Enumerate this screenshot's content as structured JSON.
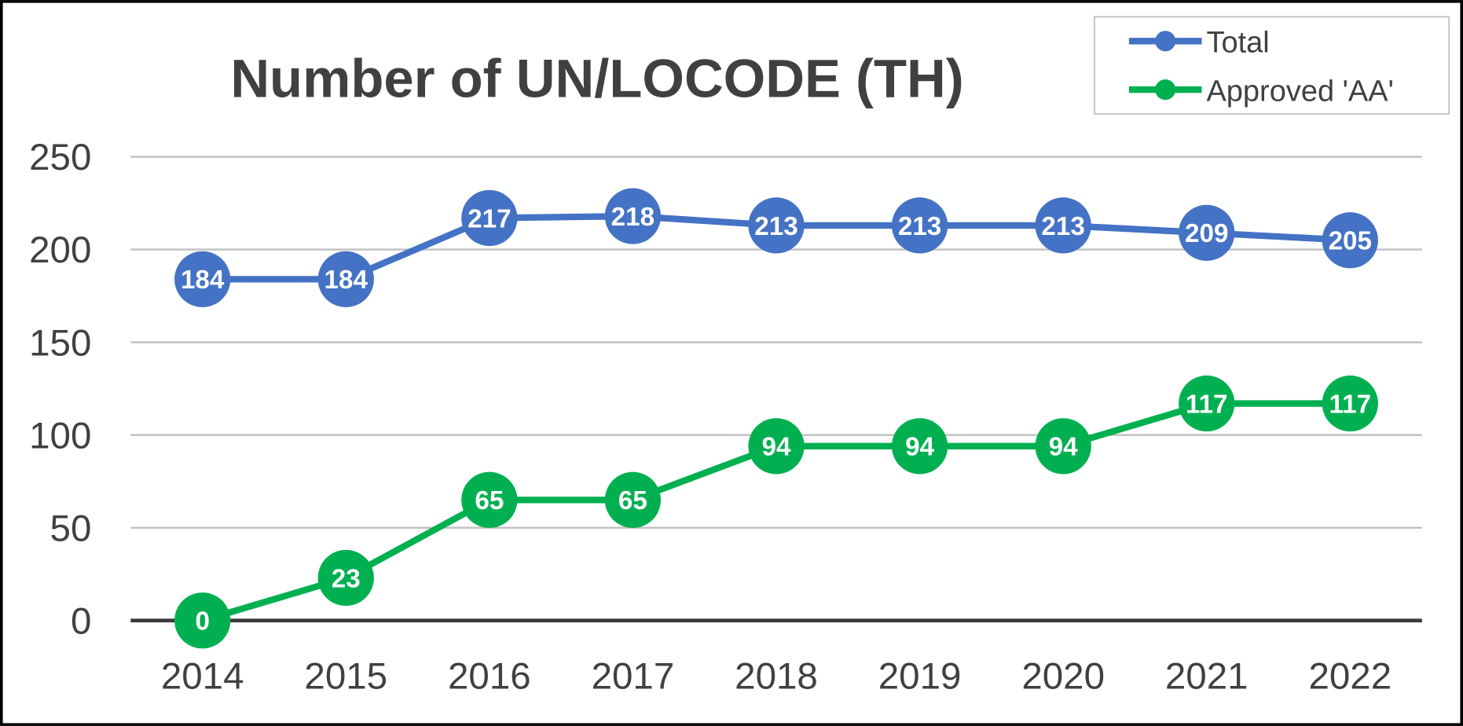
{
  "chart_data": {
    "type": "line",
    "title": "Number of UN/LOCODE (TH)",
    "xlabel": "",
    "ylabel": "",
    "categories": [
      "2014",
      "2015",
      "2016",
      "2017",
      "2018",
      "2019",
      "2020",
      "2021",
      "2022"
    ],
    "yticks": [
      "0",
      "50",
      "100",
      "150",
      "200",
      "250"
    ],
    "ylim": [
      0,
      250
    ],
    "grid": true,
    "legend_position": "top-right",
    "series": [
      {
        "name": "Total",
        "color": "#4472C4",
        "values": [
          184,
          184,
          217,
          218,
          213,
          213,
          213,
          209,
          205
        ]
      },
      {
        "name": "Approved 'AA'",
        "color": "#00B050",
        "values": [
          0,
          23,
          65,
          65,
          94,
          94,
          94,
          117,
          117
        ]
      }
    ]
  }
}
